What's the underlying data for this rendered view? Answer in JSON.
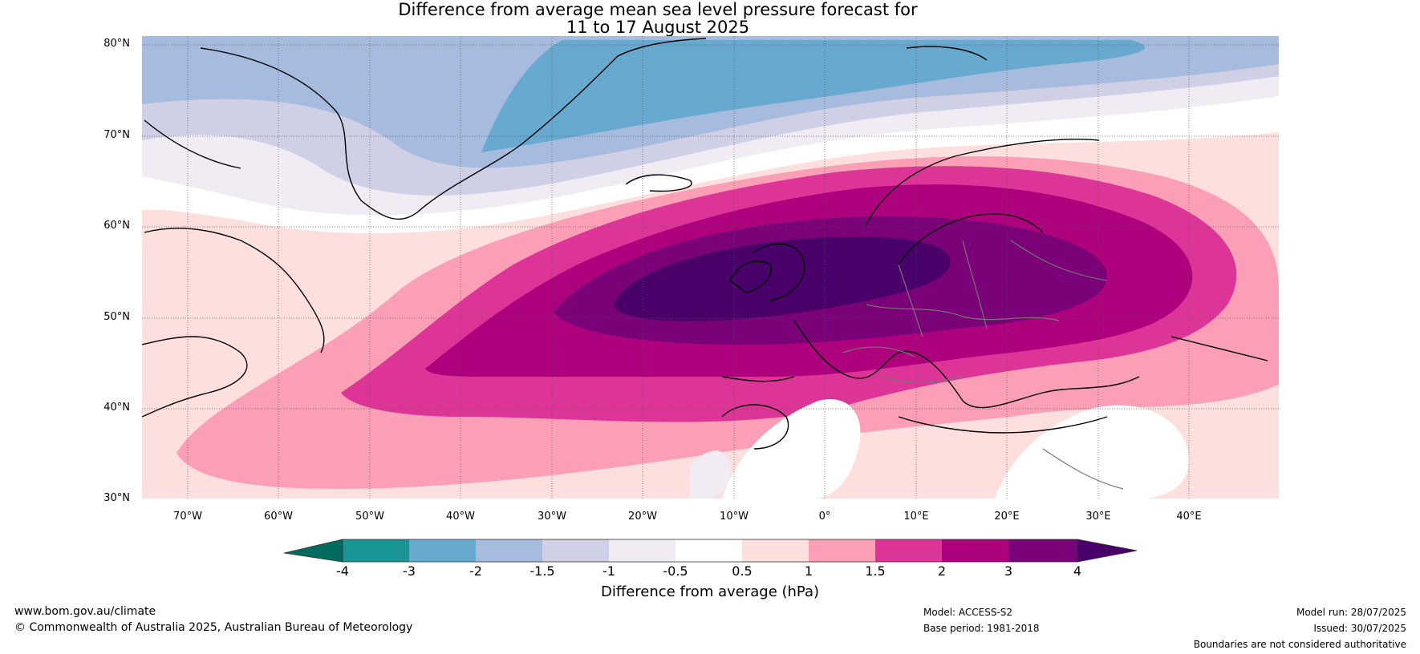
{
  "title": {
    "line1": "Difference from average mean sea level pressure forecast for",
    "line2": "11 to 17 August 2025"
  },
  "map_axes": {
    "lat_labels": [
      "80°N",
      "70°N",
      "60°N",
      "50°N",
      "40°N",
      "30°N"
    ],
    "lon_labels": [
      "70°W",
      "60°W",
      "50°W",
      "40°W",
      "30°W",
      "20°W",
      "10°W",
      "0°",
      "10°E",
      "20°E",
      "30°E",
      "40°E"
    ],
    "lat_range": [
      30,
      80
    ],
    "lon_range": [
      -75,
      50
    ],
    "gridlines": true
  },
  "colorbar": {
    "label": "Difference from average (hPa)",
    "ticks": [
      "-4",
      "-3",
      "-2",
      "-1.5",
      "-1",
      "-0.5",
      "0.5",
      "1",
      "1.5",
      "2",
      "3",
      "4"
    ],
    "colors": {
      "below_min": "#006b5e",
      "bins": [
        "#1a9595",
        "#67a9cf",
        "#a6bbdd",
        "#cfd0e5",
        "#f1ebf3",
        "#ffffff",
        "#fde0dd",
        "#fa9fb5",
        "#dd3497",
        "#ae017e",
        "#7a0177"
      ],
      "above_max": "#49006a"
    }
  },
  "footer": {
    "website": "www.bom.gov.au/climate",
    "copyright": "© Commonwealth of Australia 2025, Australian Bureau of Meteorology",
    "model": "Model: ACCESS-S2",
    "base_period": "Base period: 1981-2018",
    "model_run": "Model run: 28/07/2025",
    "issued": "Issued: 30/07/2025",
    "disclaimer": "Boundaries are not considered authoritative"
  }
}
